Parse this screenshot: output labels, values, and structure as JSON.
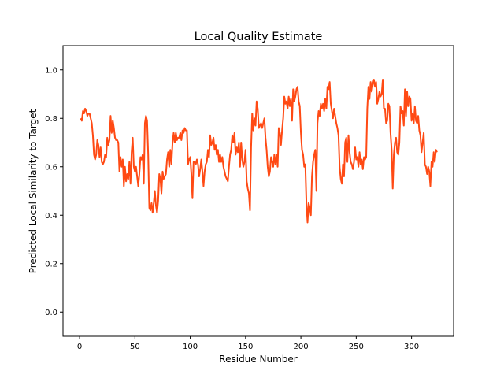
{
  "chart_data": {
    "type": "line",
    "title": "Local Quality Estimate",
    "xlabel": "Residue Number",
    "ylabel": "Predicted Local Similarity to Target",
    "xlim": [
      -15,
      338
    ],
    "ylim": [
      -0.1,
      1.1
    ],
    "xticks": [
      0,
      50,
      100,
      150,
      200,
      250,
      300
    ],
    "yticks": [
      0.0,
      0.2,
      0.4,
      0.6,
      0.8,
      1.0
    ],
    "xtick_labels": [
      "0",
      "50",
      "100",
      "150",
      "200",
      "250",
      "300"
    ],
    "ytick_labels": [
      "0.0",
      "0.2",
      "0.4",
      "0.6",
      "0.8",
      "1.0"
    ],
    "grid": false,
    "legend": "none",
    "line_color": "#ff4a14",
    "series": [
      {
        "x": [
          1,
          2,
          3,
          4,
          5,
          6,
          7,
          8,
          9,
          10,
          11,
          12,
          13,
          14,
          15,
          16,
          17,
          18,
          19,
          20,
          21,
          22,
          23,
          24,
          25,
          26,
          27,
          28,
          29,
          30,
          31,
          32,
          33,
          34,
          35,
          36,
          37,
          38,
          39,
          40,
          41,
          42,
          43,
          44,
          45,
          46,
          47,
          48,
          49,
          50,
          51,
          52,
          53,
          54,
          55,
          56,
          57,
          58,
          59,
          60,
          61,
          62,
          63,
          64,
          65,
          66,
          67,
          68,
          69,
          70,
          71,
          72,
          73,
          74,
          75,
          76,
          77,
          78,
          79,
          80,
          81,
          82,
          83,
          84,
          85,
          86,
          87,
          88,
          89,
          90,
          91,
          92,
          93,
          94,
          95,
          96,
          97,
          98,
          99,
          100,
          101,
          102,
          103,
          104,
          105,
          106,
          107,
          108,
          109,
          110,
          111,
          112,
          113,
          114,
          115,
          116,
          117,
          118,
          119,
          120,
          121,
          122,
          123,
          124,
          125,
          126,
          127,
          128,
          129,
          130,
          131,
          132,
          133,
          134,
          135,
          136,
          137,
          138,
          139,
          140,
          141,
          142,
          143,
          144,
          145,
          146,
          147,
          148,
          149,
          150,
          151,
          152,
          153,
          154,
          155,
          156,
          157,
          158,
          159,
          160,
          161,
          162,
          163,
          164,
          165,
          166,
          167,
          168,
          169,
          170,
          171,
          172,
          173,
          174,
          175,
          176,
          177,
          178,
          179,
          180,
          181,
          182,
          183,
          184,
          185,
          186,
          187,
          188,
          189,
          190,
          191,
          192,
          193,
          194,
          195,
          196,
          197,
          198,
          199,
          200,
          201,
          202,
          203,
          204,
          205,
          206,
          207,
          208,
          209,
          210,
          211,
          212,
          213,
          214,
          215,
          216,
          217,
          218,
          219,
          220,
          221,
          222,
          223,
          224,
          225,
          226,
          227,
          228,
          229,
          230,
          231,
          232,
          233,
          234,
          235,
          236,
          237,
          238,
          239,
          240,
          241,
          242,
          243,
          244,
          245,
          246,
          247,
          248,
          249,
          250,
          251,
          252,
          253,
          254,
          255,
          256,
          257,
          258,
          259,
          260,
          261,
          262,
          263,
          264,
          265,
          266,
          267,
          268,
          269,
          270,
          271,
          272,
          273,
          274,
          275,
          276,
          277,
          278,
          279,
          280,
          281,
          282,
          283,
          284,
          285,
          286,
          287,
          288,
          289,
          290,
          291,
          292,
          293,
          294,
          295,
          296,
          297,
          298,
          299,
          300,
          301,
          302,
          303,
          304,
          305,
          306,
          307,
          308,
          309,
          310,
          311,
          312,
          313,
          314,
          315,
          316,
          317,
          318,
          319,
          320,
          321,
          322,
          323
        ],
        "y": [
          0.8,
          0.79,
          0.83,
          0.82,
          0.84,
          0.83,
          0.81,
          0.82,
          0.82,
          0.8,
          0.78,
          0.73,
          0.65,
          0.63,
          0.65,
          0.71,
          0.69,
          0.64,
          0.68,
          0.62,
          0.61,
          0.62,
          0.65,
          0.64,
          0.72,
          0.69,
          0.71,
          0.81,
          0.74,
          0.79,
          0.76,
          0.72,
          0.71,
          0.71,
          0.7,
          0.58,
          0.64,
          0.6,
          0.63,
          0.52,
          0.6,
          0.54,
          0.57,
          0.55,
          0.62,
          0.53,
          0.66,
          0.72,
          0.6,
          0.58,
          0.6,
          0.56,
          0.52,
          0.57,
          0.64,
          0.63,
          0.65,
          0.53,
          0.78,
          0.81,
          0.79,
          0.65,
          0.43,
          0.42,
          0.45,
          0.41,
          0.45,
          0.5,
          0.44,
          0.41,
          0.46,
          0.57,
          0.55,
          0.49,
          0.58,
          0.55,
          0.56,
          0.57,
          0.63,
          0.66,
          0.6,
          0.67,
          0.61,
          0.7,
          0.74,
          0.7,
          0.74,
          0.71,
          0.72,
          0.72,
          0.74,
          0.71,
          0.75,
          0.74,
          0.76,
          0.75,
          0.75,
          0.61,
          0.63,
          0.64,
          0.57,
          0.47,
          0.62,
          0.62,
          0.61,
          0.63,
          0.61,
          0.56,
          0.59,
          0.63,
          0.58,
          0.52,
          0.58,
          0.61,
          0.62,
          0.67,
          0.64,
          0.73,
          0.69,
          0.7,
          0.72,
          0.67,
          0.69,
          0.65,
          0.67,
          0.62,
          0.65,
          0.62,
          0.64,
          0.6,
          0.58,
          0.56,
          0.55,
          0.54,
          0.6,
          0.65,
          0.67,
          0.73,
          0.7,
          0.74,
          0.65,
          0.68,
          0.66,
          0.7,
          0.6,
          0.7,
          0.63,
          0.6,
          0.62,
          0.67,
          0.54,
          0.51,
          0.49,
          0.42,
          0.68,
          0.82,
          0.75,
          0.8,
          0.77,
          0.87,
          0.84,
          0.76,
          0.77,
          0.78,
          0.76,
          0.78,
          0.8,
          0.72,
          0.67,
          0.6,
          0.56,
          0.58,
          0.64,
          0.62,
          0.6,
          0.65,
          0.61,
          0.65,
          0.6,
          0.76,
          0.74,
          0.69,
          0.75,
          0.8,
          0.89,
          0.86,
          0.87,
          0.84,
          0.89,
          0.85,
          0.88,
          0.79,
          0.92,
          0.87,
          0.89,
          0.92,
          0.93,
          0.87,
          0.85,
          0.74,
          0.67,
          0.65,
          0.6,
          0.61,
          0.45,
          0.37,
          0.45,
          0.43,
          0.4,
          0.56,
          0.62,
          0.65,
          0.67,
          0.5,
          0.78,
          0.83,
          0.81,
          0.86,
          0.84,
          0.86,
          0.83,
          0.88,
          0.84,
          0.93,
          0.92,
          0.95,
          0.86,
          0.83,
          0.8,
          0.84,
          0.81,
          0.78,
          0.76,
          0.73,
          0.6,
          0.55,
          0.53,
          0.61,
          0.56,
          0.7,
          0.72,
          0.62,
          0.73,
          0.66,
          0.62,
          0.61,
          0.59,
          0.62,
          0.68,
          0.63,
          0.64,
          0.6,
          0.66,
          0.61,
          0.63,
          0.59,
          0.64,
          0.63,
          0.64,
          0.84,
          0.93,
          0.88,
          0.95,
          0.91,
          0.94,
          0.96,
          0.93,
          0.95,
          0.86,
          0.88,
          0.91,
          0.89,
          0.9,
          0.96,
          0.84,
          0.84,
          0.78,
          0.79,
          0.86,
          0.85,
          0.74,
          0.67,
          0.51,
          0.65,
          0.7,
          0.72,
          0.66,
          0.65,
          0.7,
          0.85,
          0.82,
          0.83,
          0.77,
          0.92,
          0.81,
          0.91,
          0.85,
          0.89,
          0.88,
          0.79,
          0.82,
          0.78,
          0.85,
          0.79,
          0.78,
          0.81,
          0.75,
          0.73,
          0.66,
          0.7,
          0.74,
          0.61,
          0.6,
          0.57,
          0.6,
          0.58,
          0.52,
          0.62,
          0.6,
          0.66,
          0.62,
          0.67,
          0.66
        ]
      }
    ]
  }
}
